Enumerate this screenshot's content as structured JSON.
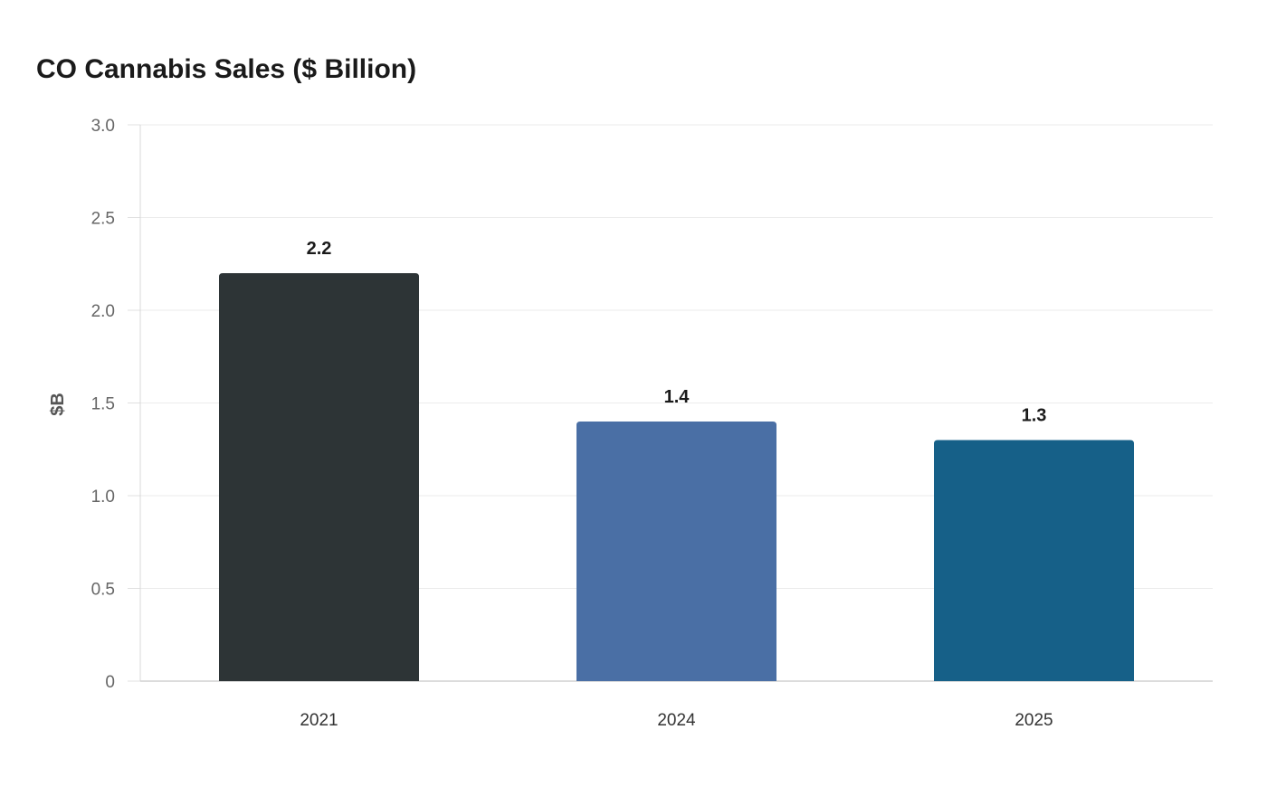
{
  "chart_data": {
    "type": "bar",
    "title": "CO Cannabis Sales ($ Billion)",
    "xlabel": "",
    "ylabel": "$B",
    "categories": [
      "2021",
      "2024",
      "2025"
    ],
    "values": [
      2.2,
      1.4,
      1.3
    ],
    "data_labels": [
      "2.2",
      "1.4",
      "1.3"
    ],
    "colors": [
      "#2d3436",
      "#4a6fa5",
      "#166088"
    ],
    "ylim": [
      0,
      3.0
    ],
    "yticks": [
      0,
      0.5,
      1.0,
      1.5,
      2.0,
      2.5,
      3.0
    ],
    "ytick_labels": [
      "0",
      "0.5",
      "1.0",
      "1.5",
      "2.0",
      "2.5",
      "3.0"
    ],
    "grid": true,
    "legend": "none"
  }
}
